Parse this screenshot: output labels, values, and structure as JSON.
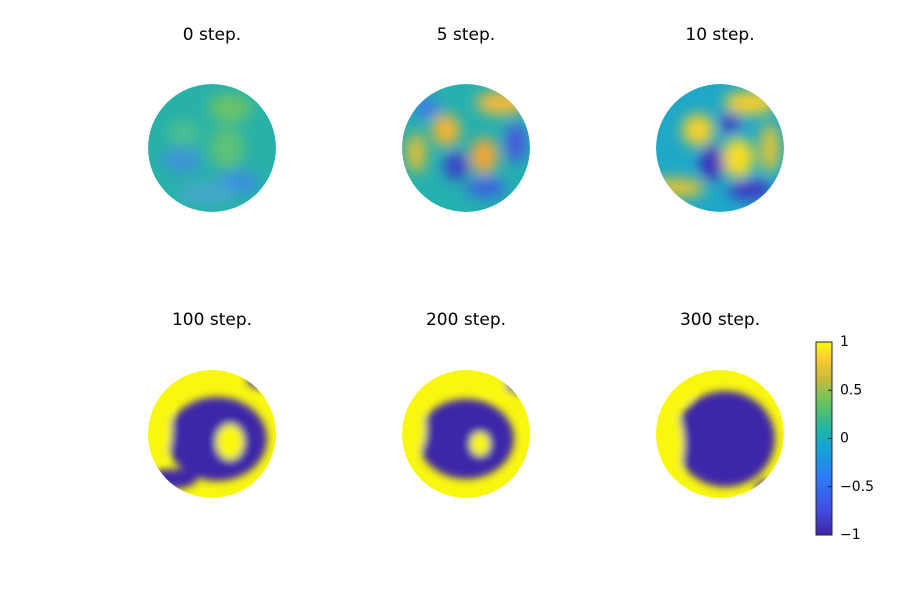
{
  "panels": [
    {
      "title": "0 step."
    },
    {
      "title": "5 step."
    },
    {
      "title": "10 step."
    },
    {
      "title": "100 step."
    },
    {
      "title": "200 step."
    },
    {
      "title": "300 step."
    }
  ],
  "colorbar": {
    "lim": [
      -1,
      1
    ],
    "ticks": [
      1,
      0.5,
      0,
      {
        "value": -0.5,
        "label": "−0.5"
      },
      {
        "value": -1,
        "label": "−1"
      }
    ]
  }
}
